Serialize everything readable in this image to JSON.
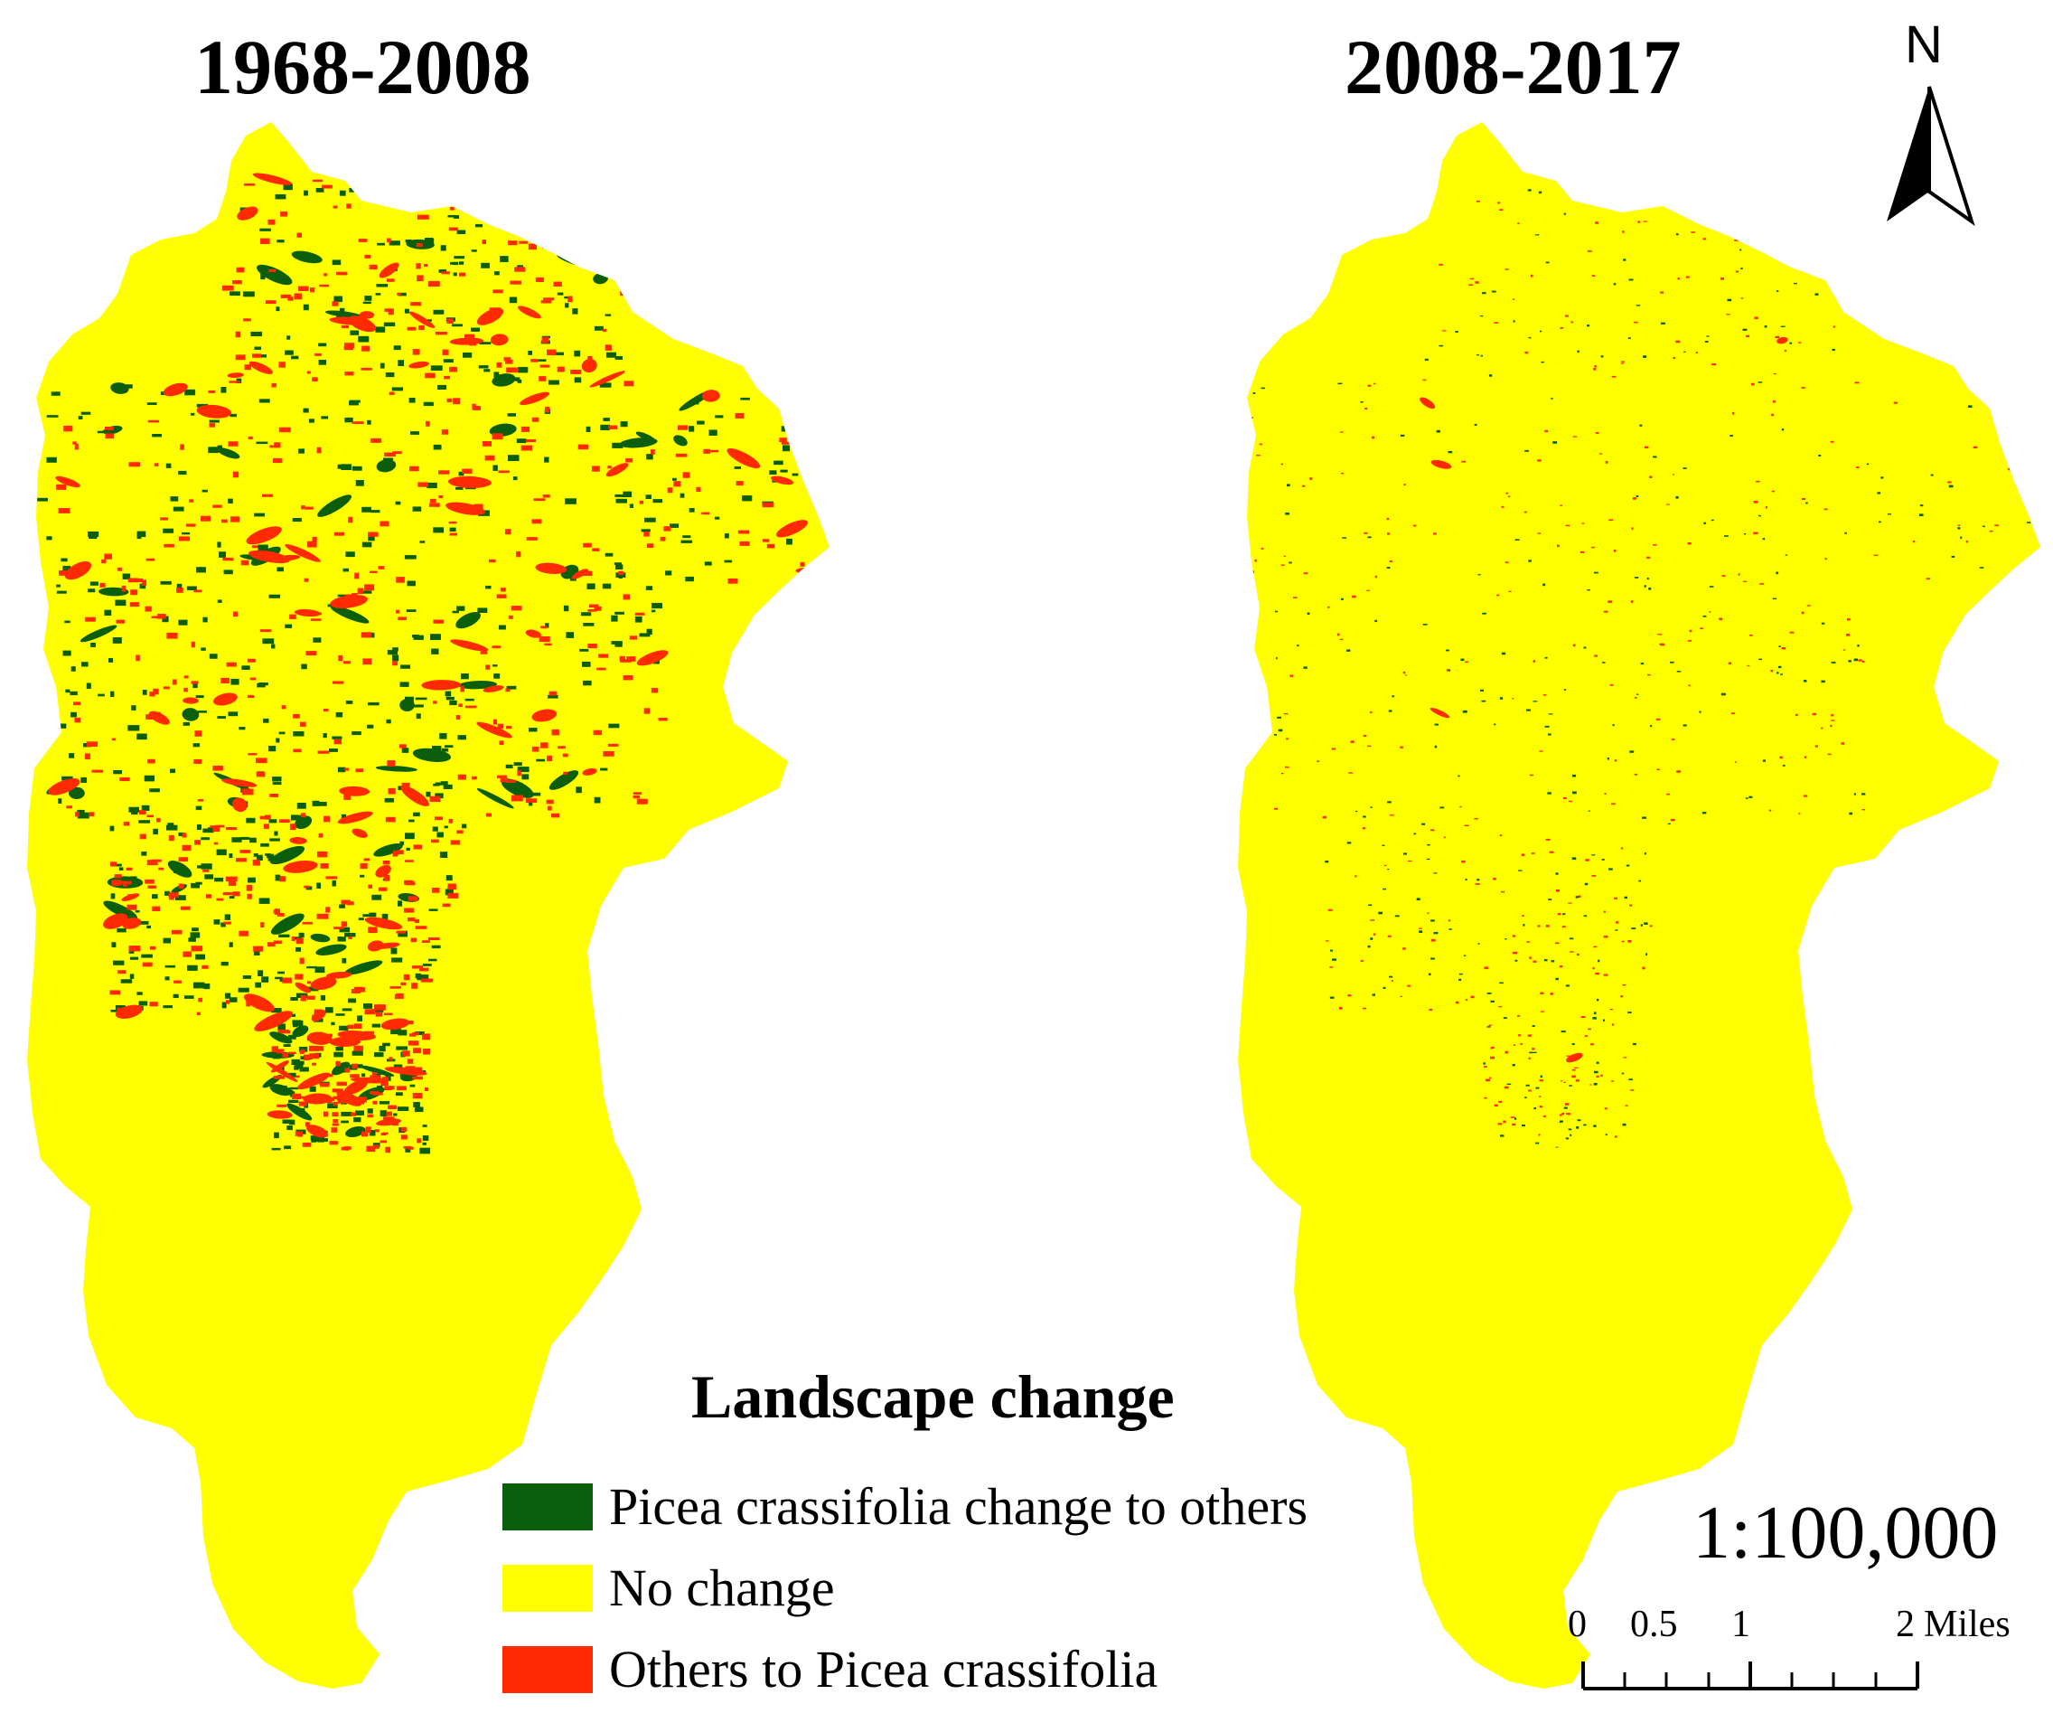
{
  "panels": [
    {
      "title": "1968-2008",
      "change_density": "high"
    },
    {
      "title": "2008-2017",
      "change_density": "low"
    }
  ],
  "north_arrow": {
    "label": "N"
  },
  "legend": {
    "title": "Landscape change",
    "items": [
      {
        "label": "Picea crassifolia change to others",
        "color": "#0b5e0b"
      },
      {
        "label": "No change",
        "color": "#ffff00"
      },
      {
        "label": "Others to Picea crassifolia",
        "color": "#ff2a00"
      }
    ]
  },
  "scale": {
    "ratio": "1:100,000",
    "labels": [
      "0",
      "0.5",
      "1",
      "2"
    ],
    "unit": "Miles"
  },
  "colors": {
    "no_change": "#ffff00",
    "to_others": "#0b5e0b",
    "to_picea": "#ff2a00",
    "background": "#ffffff"
  }
}
